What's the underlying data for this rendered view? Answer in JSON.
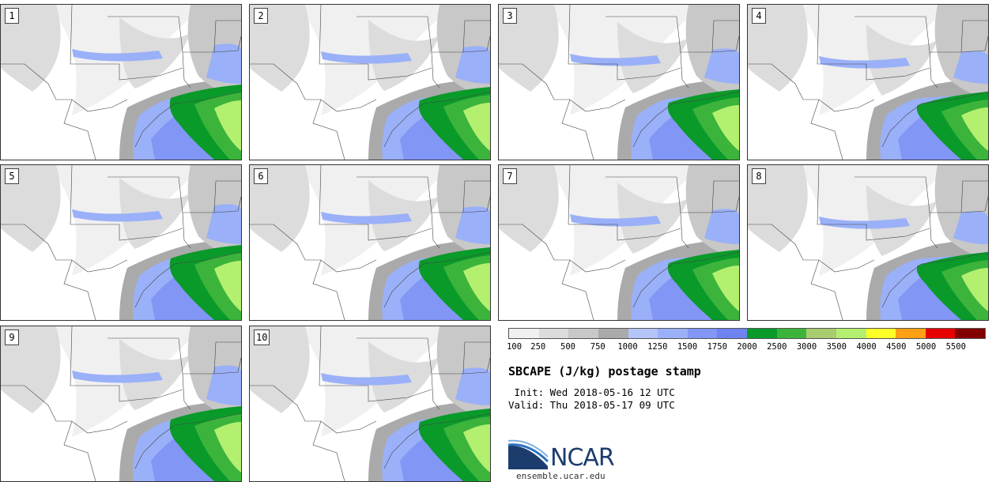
{
  "panels": [
    {
      "label": "1"
    },
    {
      "label": "2"
    },
    {
      "label": "3"
    },
    {
      "label": "4"
    },
    {
      "label": "5"
    },
    {
      "label": "6"
    },
    {
      "label": "7"
    },
    {
      "label": "8"
    },
    {
      "label": "9"
    },
    {
      "label": "10"
    }
  ],
  "legend": {
    "colors": [
      "#f0f0f0",
      "#dcdcdc",
      "#c8c8c8",
      "#aaaaaa",
      "#b4c4f8",
      "#9ab0f8",
      "#8296f5",
      "#6e82f0",
      "#0a9a2a",
      "#3cb43c",
      "#a8cc6e",
      "#b4f070",
      "#ffff28",
      "#ffa014",
      "#e60000",
      "#820000"
    ],
    "ticks": [
      "100",
      "250",
      "500",
      "750",
      "1000",
      "1250",
      "1500",
      "1750",
      "2000",
      "2500",
      "3000",
      "3500",
      "4000",
      "4500",
      "5000",
      "5500"
    ]
  },
  "title": "SBCAPE (J/kg) postage stamp",
  "init": " Init: Wed 2018-05-16 12 UTC",
  "valid": "Valid: Thu 2018-05-17 09 UTC",
  "logo": {
    "text": "NCAR",
    "colors": {
      "primary": "#1d3c6e",
      "accent": "#2b73c0"
    }
  },
  "url": "ensemble.ucar.edu"
}
